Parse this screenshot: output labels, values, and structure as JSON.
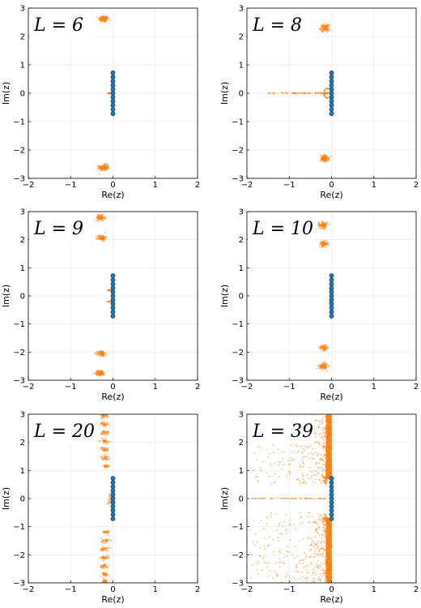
{
  "chart_data": [
    {
      "type": "scatter",
      "title": "L = 6",
      "xlabel": "Re(z)",
      "ylabel": "Im(z)",
      "xlim": [
        -2,
        2
      ],
      "ylim": [
        -3,
        3
      ],
      "xticks": [
        "−2",
        "−1",
        "0",
        "1",
        "2"
      ],
      "yticks": [
        "3",
        "2",
        "1",
        "0",
        "−1",
        "−2",
        "−3"
      ],
      "grid": true,
      "series": [
        {
          "kind": "roots",
          "color": "#1f77b4",
          "x": [
            0,
            0,
            0,
            0,
            0,
            0,
            0,
            0,
            0,
            0,
            0
          ],
          "y": [
            0.72,
            0.57,
            0.42,
            0.28,
            0.14,
            0,
            -0.14,
            -0.28,
            -0.42,
            -0.57,
            -0.72
          ]
        },
        {
          "kind": "cloud",
          "color": "#ff7f0e",
          "clusters": [
            {
              "cx": -0.22,
              "cy": 2.62,
              "sx": 0.06,
              "sy": 0.06,
              "n": 140
            },
            {
              "cx": -0.22,
              "cy": -2.62,
              "sx": 0.06,
              "sy": 0.06,
              "n": 140
            },
            {
              "cx": -0.06,
              "cy": 0.0,
              "sx": 0.03,
              "sy": 0.01,
              "n": 30
            },
            {
              "cx": -0.03,
              "cy": 0.45,
              "sx": 0.01,
              "sy": 0.02,
              "n": 8
            },
            {
              "cx": -0.03,
              "cy": -0.45,
              "sx": 0.01,
              "sy": 0.02,
              "n": 8
            }
          ]
        }
      ]
    },
    {
      "type": "scatter",
      "title": "L = 8",
      "xlabel": "Re(z)",
      "ylabel": "Im(z)",
      "xlim": [
        -2,
        2
      ],
      "ylim": [
        -3,
        3
      ],
      "xticks": [
        "−2",
        "−1",
        "0",
        "1",
        "2"
      ],
      "yticks": [
        "3",
        "2",
        "1",
        "0",
        "−1",
        "−2",
        "−3"
      ],
      "grid": true,
      "series": [
        {
          "kind": "roots",
          "color": "#1f77b4",
          "x": [
            0,
            0,
            0,
            0,
            0,
            0,
            0,
            0,
            0,
            0,
            0
          ],
          "y": [
            0.72,
            0.57,
            0.42,
            0.28,
            0.14,
            0,
            -0.14,
            -0.28,
            -0.42,
            -0.57,
            -0.72
          ]
        },
        {
          "kind": "cloud",
          "color": "#ff7f0e",
          "clusters": [
            {
              "cx": -0.16,
              "cy": 2.3,
              "sx": 0.05,
              "sy": 0.06,
              "n": 130
            },
            {
              "cx": -0.16,
              "cy": -2.3,
              "sx": 0.05,
              "sy": 0.06,
              "n": 130
            },
            {
              "cx": -0.12,
              "cy": 0.0,
              "sx": 0.05,
              "sy": 0.01,
              "n": 40
            }
          ],
          "streaks": [
            {
              "x0": -1.5,
              "x1": -0.2,
              "y": 0.0,
              "n": 80
            }
          ],
          "arcs": [
            {
              "cx": -0.08,
              "cy": 0.0,
              "r": 0.17,
              "from": 60,
              "to": 300,
              "n": 60
            }
          ]
        }
      ]
    },
    {
      "type": "scatter",
      "title": "L = 9",
      "xlabel": "Re(z)",
      "ylabel": "Im(z)",
      "xlim": [
        -2,
        2
      ],
      "ylim": [
        -3,
        3
      ],
      "xticks": [
        "−2",
        "−1",
        "0",
        "1",
        "2"
      ],
      "yticks": [
        "3",
        "2",
        "1",
        "0",
        "−1",
        "−2",
        "−3"
      ],
      "grid": true,
      "series": [
        {
          "kind": "roots",
          "color": "#1f77b4",
          "x": [
            0,
            0,
            0,
            0,
            0,
            0,
            0,
            0,
            0,
            0,
            0
          ],
          "y": [
            0.72,
            0.57,
            0.42,
            0.28,
            0.14,
            0,
            -0.14,
            -0.28,
            -0.42,
            -0.57,
            -0.72
          ]
        },
        {
          "kind": "cloud",
          "color": "#ff7f0e",
          "clusters": [
            {
              "cx": -0.3,
              "cy": 2.78,
              "sx": 0.06,
              "sy": 0.05,
              "n": 110
            },
            {
              "cx": -0.27,
              "cy": 2.07,
              "sx": 0.05,
              "sy": 0.05,
              "n": 100
            },
            {
              "cx": -0.27,
              "cy": -2.05,
              "sx": 0.05,
              "sy": 0.05,
              "n": 100
            },
            {
              "cx": -0.3,
              "cy": -2.75,
              "sx": 0.06,
              "sy": 0.05,
              "n": 110
            },
            {
              "cx": -0.07,
              "cy": 0.2,
              "sx": 0.04,
              "sy": 0.01,
              "n": 20
            },
            {
              "cx": -0.07,
              "cy": -0.2,
              "sx": 0.04,
              "sy": 0.01,
              "n": 20
            }
          ]
        }
      ]
    },
    {
      "type": "scatter",
      "title": "L = 10",
      "xlabel": "Re(z)",
      "ylabel": "Im(z)",
      "xlim": [
        -2,
        2
      ],
      "ylim": [
        -3,
        3
      ],
      "xticks": [
        "−2",
        "−1",
        "0",
        "1",
        "2"
      ],
      "yticks": [
        "3",
        "2",
        "1",
        "0",
        "−1",
        "−2",
        "−3"
      ],
      "grid": true,
      "series": [
        {
          "kind": "roots",
          "color": "#1f77b4",
          "x": [
            0,
            0,
            0,
            0,
            0,
            0,
            0,
            0,
            0,
            0,
            0
          ],
          "y": [
            0.72,
            0.57,
            0.42,
            0.28,
            0.14,
            0,
            -0.14,
            -0.28,
            -0.42,
            -0.57,
            -0.72
          ]
        },
        {
          "kind": "cloud",
          "color": "#ff7f0e",
          "clusters": [
            {
              "cx": -0.2,
              "cy": 2.52,
              "sx": 0.05,
              "sy": 0.06,
              "n": 110
            },
            {
              "cx": -0.18,
              "cy": 1.85,
              "sx": 0.05,
              "sy": 0.05,
              "n": 90
            },
            {
              "cx": -0.18,
              "cy": -1.85,
              "sx": 0.05,
              "sy": 0.05,
              "n": 90
            },
            {
              "cx": -0.2,
              "cy": -2.5,
              "sx": 0.05,
              "sy": 0.06,
              "n": 110
            },
            {
              "cx": -0.03,
              "cy": 0.22,
              "sx": 0.01,
              "sy": 0.04,
              "n": 10
            },
            {
              "cx": -0.03,
              "cy": -0.22,
              "sx": 0.01,
              "sy": 0.04,
              "n": 10
            }
          ]
        }
      ]
    },
    {
      "type": "scatter",
      "title": "L = 20",
      "xlabel": "Re(z)",
      "ylabel": "Im(z)",
      "xlim": [
        -2,
        2
      ],
      "ylim": [
        -3,
        3
      ],
      "xticks": [
        "−2",
        "−1",
        "0",
        "1",
        "2"
      ],
      "yticks": [
        "3",
        "2",
        "1",
        "0",
        "−1",
        "−2",
        "−3"
      ],
      "grid": true,
      "series": [
        {
          "kind": "roots",
          "color": "#1f77b4",
          "x": [
            0,
            0,
            0,
            0,
            0,
            0,
            0,
            0,
            0,
            0,
            0
          ],
          "y": [
            0.72,
            0.57,
            0.42,
            0.28,
            0.14,
            0,
            -0.14,
            -0.28,
            -0.42,
            -0.57,
            -0.72
          ]
        },
        {
          "kind": "cloud",
          "color": "#ff7f0e",
          "clusters": [
            {
              "cx": -0.2,
              "cy": 2.95,
              "sx": 0.05,
              "sy": 0.04,
              "n": 40
            },
            {
              "cx": -0.2,
              "cy": 2.65,
              "sx": 0.05,
              "sy": 0.04,
              "n": 40
            },
            {
              "cx": -0.2,
              "cy": 2.35,
              "sx": 0.05,
              "sy": 0.04,
              "n": 40
            },
            {
              "cx": -0.2,
              "cy": 2.05,
              "sx": 0.05,
              "sy": 0.04,
              "n": 40
            },
            {
              "cx": -0.2,
              "cy": 1.75,
              "sx": 0.05,
              "sy": 0.04,
              "n": 40
            },
            {
              "cx": -0.18,
              "cy": 1.45,
              "sx": 0.05,
              "sy": 0.04,
              "n": 38
            },
            {
              "cx": -0.16,
              "cy": 1.15,
              "sx": 0.04,
              "sy": 0.04,
              "n": 32
            },
            {
              "cx": -0.16,
              "cy": -1.2,
              "sx": 0.04,
              "sy": 0.04,
              "n": 32
            },
            {
              "cx": -0.18,
              "cy": -1.5,
              "sx": 0.05,
              "sy": 0.04,
              "n": 38
            },
            {
              "cx": -0.2,
              "cy": -1.8,
              "sx": 0.05,
              "sy": 0.04,
              "n": 40
            },
            {
              "cx": -0.2,
              "cy": -2.1,
              "sx": 0.05,
              "sy": 0.04,
              "n": 40
            },
            {
              "cx": -0.2,
              "cy": -2.4,
              "sx": 0.05,
              "sy": 0.04,
              "n": 40
            },
            {
              "cx": -0.2,
              "cy": -2.7,
              "sx": 0.05,
              "sy": 0.04,
              "n": 40
            },
            {
              "cx": -0.2,
              "cy": -2.95,
              "sx": 0.05,
              "sy": 0.04,
              "n": 36
            },
            {
              "cx": -0.06,
              "cy": 0.1,
              "sx": 0.03,
              "sy": 0.05,
              "n": 16
            },
            {
              "cx": -0.06,
              "cy": -0.1,
              "sx": 0.03,
              "sy": 0.05,
              "n": 16
            }
          ]
        }
      ]
    },
    {
      "type": "scatter",
      "title": "L = 39",
      "xlabel": "Re(z)",
      "ylabel": "Im(z)",
      "xlim": [
        -2,
        2
      ],
      "ylim": [
        -3,
        3
      ],
      "xticks": [
        "−2",
        "−1",
        "0",
        "1",
        "2"
      ],
      "yticks": [
        "3",
        "2",
        "1",
        "0",
        "−1",
        "−2",
        "−3"
      ],
      "grid": true,
      "series": [
        {
          "kind": "roots",
          "color": "#1f77b4",
          "x": [
            0,
            0,
            0,
            0,
            0,
            0,
            0,
            0,
            0,
            0,
            0
          ],
          "y": [
            0.72,
            0.57,
            0.42,
            0.28,
            0.14,
            0,
            -0.14,
            -0.28,
            -0.42,
            -0.57,
            -0.72
          ]
        },
        {
          "kind": "cloud",
          "color": "#ff7f0e",
          "bands": [
            {
              "x0": -0.12,
              "x1": 0.0,
              "y0": 0.7,
              "y1": 3.0,
              "n": 1400
            },
            {
              "x0": -0.12,
              "x1": 0.0,
              "y0": -3.0,
              "y1": -0.7,
              "n": 1400
            }
          ],
          "scatters": [
            {
              "x0": -1.9,
              "x1": -0.12,
              "y0": 0.5,
              "y1": 3.0,
              "n": 380,
              "skew": 3
            },
            {
              "x0": -1.9,
              "x1": -0.12,
              "y0": -3.0,
              "y1": -0.5,
              "n": 380,
              "skew": 3
            }
          ],
          "clusters": [
            {
              "cx": -0.12,
              "cy": 0.75,
              "sx": 0.06,
              "sy": 0.04,
              "n": 60
            },
            {
              "cx": -0.12,
              "cy": -0.75,
              "sx": 0.06,
              "sy": 0.04,
              "n": 60
            }
          ],
          "streaks": [
            {
              "x0": -1.9,
              "x1": -0.1,
              "y": 0.0,
              "n": 70
            }
          ]
        }
      ]
    }
  ]
}
